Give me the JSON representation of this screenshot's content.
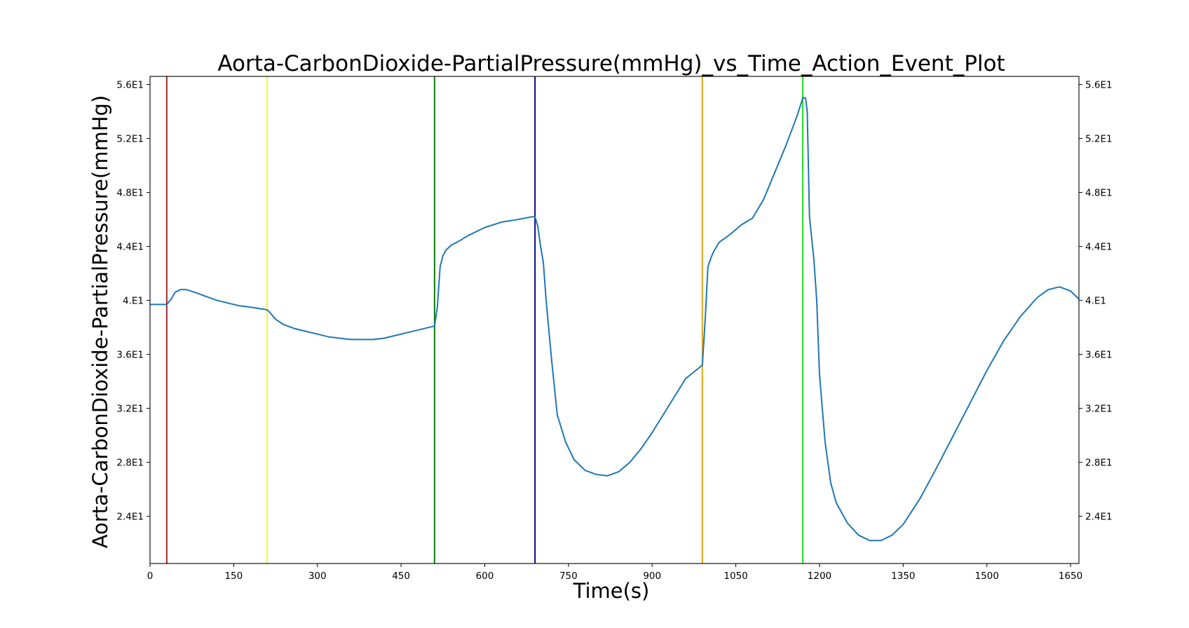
{
  "chart_data": {
    "type": "line",
    "title": "Aorta-CarbonDioxide-PartialPressure(mmHg)_vs_Time_Action_Event_Plot",
    "xlabel": "Time(s)",
    "ylabel": "Aorta-CarbonDioxide-PartialPressure(mmHg)",
    "xlim": [
      0,
      1665
    ],
    "ylim": [
      20.5,
      56.6
    ],
    "x_ticks": [
      0,
      150,
      300,
      450,
      600,
      750,
      900,
      1050,
      1200,
      1350,
      1500,
      1650
    ],
    "x_tick_labels": [
      "0",
      "150",
      "300",
      "450",
      "600",
      "750",
      "900",
      "1050",
      "1200",
      "1350",
      "1500",
      "1650"
    ],
    "y_ticks": [
      24,
      28,
      32,
      36,
      40,
      44,
      48,
      52,
      56
    ],
    "y_tick_labels": [
      "2.4E1",
      "2.8E1",
      "3.2E1",
      "3.6E1",
      "4.E1",
      "4.4E1",
      "4.8E1",
      "5.2E1",
      "5.6E1"
    ],
    "grid": false,
    "right_axis_mirrored": true,
    "series": [
      {
        "color": "#1f77b4",
        "x": [
          0,
          30,
          38,
          45,
          55,
          65,
          80,
          100,
          120,
          140,
          160,
          180,
          195,
          210,
          215,
          225,
          240,
          260,
          280,
          300,
          320,
          340,
          360,
          380,
          400,
          420,
          440,
          460,
          480,
          500,
          510,
          515,
          520,
          525,
          530,
          540,
          550,
          570,
          600,
          630,
          660,
          685,
          690,
          695,
          700,
          705,
          710,
          720,
          730,
          745,
          760,
          780,
          800,
          820,
          840,
          860,
          880,
          900,
          930,
          960,
          990,
          995,
          1000,
          1005,
          1010,
          1020,
          1040,
          1060,
          1080,
          1100,
          1120,
          1140,
          1160,
          1170,
          1175,
          1178,
          1182,
          1190,
          1195,
          1200,
          1210,
          1220,
          1230,
          1250,
          1270,
          1290,
          1310,
          1330,
          1350,
          1380,
          1410,
          1440,
          1470,
          1500,
          1530,
          1560,
          1590,
          1610,
          1630,
          1650,
          1665
        ],
        "y": [
          39.7,
          39.7,
          40.1,
          40.6,
          40.8,
          40.8,
          40.6,
          40.3,
          40.0,
          39.8,
          39.6,
          39.5,
          39.4,
          39.3,
          39.1,
          38.6,
          38.2,
          37.9,
          37.7,
          37.5,
          37.3,
          37.2,
          37.1,
          37.1,
          37.1,
          37.2,
          37.4,
          37.6,
          37.8,
          38.0,
          38.1,
          39.5,
          42.5,
          43.3,
          43.7,
          44.1,
          44.3,
          44.8,
          45.4,
          45.8,
          46.0,
          46.2,
          46.2,
          45.5,
          44.0,
          42.8,
          40.0,
          35.5,
          31.5,
          29.5,
          28.2,
          27.4,
          27.1,
          27.0,
          27.3,
          28.0,
          29.0,
          30.2,
          32.2,
          34.2,
          35.2,
          38.5,
          42.5,
          43.1,
          43.6,
          44.3,
          44.9,
          45.6,
          46.1,
          47.5,
          49.5,
          51.5,
          53.7,
          55.0,
          55.0,
          54.0,
          46.2,
          43.0,
          40.0,
          34.5,
          29.5,
          26.5,
          25.0,
          23.5,
          22.6,
          22.2,
          22.2,
          22.6,
          23.4,
          25.3,
          27.6,
          30.0,
          32.4,
          34.8,
          37.0,
          38.8,
          40.2,
          40.8,
          41.0,
          40.7,
          40.1
        ]
      }
    ],
    "event_lines": [
      {
        "x": 30,
        "color": "#a52a2a"
      },
      {
        "x": 210,
        "color": "#f5f530"
      },
      {
        "x": 510,
        "color": "#0a7d0a"
      },
      {
        "x": 690,
        "color": "#0a0a8c"
      },
      {
        "x": 990,
        "color": "#e6a515"
      },
      {
        "x": 1170,
        "color": "#22dd22"
      }
    ]
  }
}
